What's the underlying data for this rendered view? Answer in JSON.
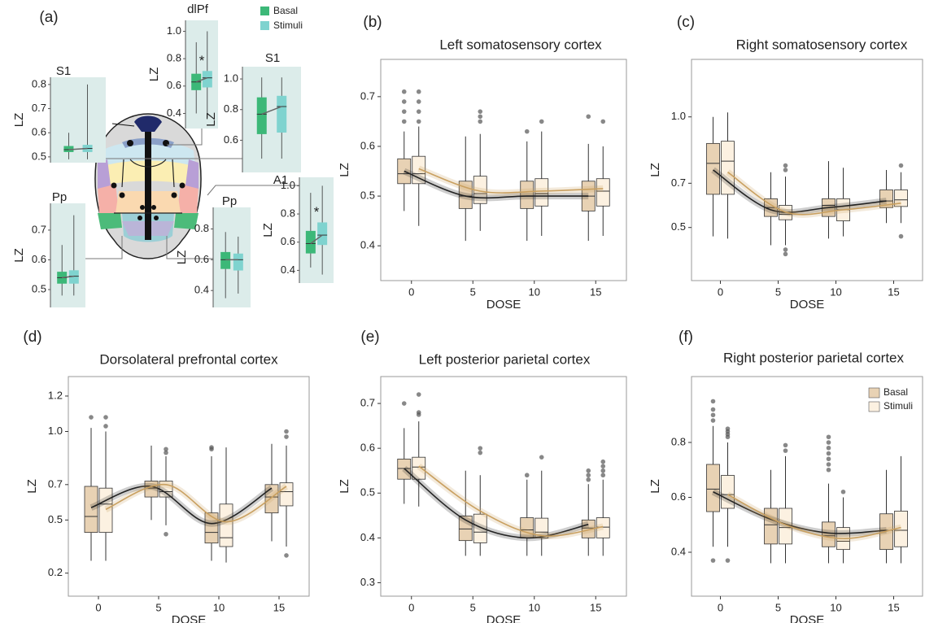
{
  "chart_data": [
    {
      "type": "insets",
      "label": "(a)",
      "series": [
        {
          "name": "Basal",
          "color": "#3cb878"
        },
        {
          "name": "Stimuli",
          "color": "#7fd3cf"
        }
      ],
      "insets": [
        {
          "title": "S1",
          "ylabel": "LZ",
          "ylim": [
            0.476,
            0.83
          ],
          "yticks": [
            0.5,
            0.6,
            0.7,
            0.8
          ],
          "boxes": [
            {
              "min": 0.49,
              "q1": 0.52,
              "median": 0.53,
              "q3": 0.545,
              "max": 0.6
            },
            {
              "min": 0.49,
              "q1": 0.52,
              "median": 0.535,
              "q3": 0.55,
              "max": 0.8
            }
          ]
        },
        {
          "title": "dlPf",
          "ylabel": "LZ",
          "annotation": "*",
          "ylim": [
            0.29,
            1.08
          ],
          "yticks": [
            0.4,
            0.6,
            0.8,
            {
              "value": 1,
              "label": "1.0"
            }
          ],
          "boxes": [
            {
              "min": 0.4,
              "q1": 0.57,
              "median": 0.63,
              "q3": 0.69,
              "max": 0.92
            },
            {
              "min": 0.37,
              "q1": 0.59,
              "median": 0.66,
              "q3": 0.71,
              "max": 1.0
            }
          ]
        },
        {
          "title": "S1",
          "ylabel": "LZ",
          "ylim": [
            0.39,
            1.08
          ],
          "yticks": [
            0.6,
            0.8,
            {
              "value": 1,
              "label": "1.0"
            }
          ],
          "boxes": [
            {
              "min": 0.48,
              "q1": 0.64,
              "median": 0.77,
              "q3": 0.88,
              "max": 1.01
            },
            {
              "min": 0.48,
              "q1": 0.65,
              "median": 0.82,
              "q3": 0.89,
              "max": 1.01
            }
          ]
        },
        {
          "title": "A1",
          "ylabel": "LZ",
          "annotation": "*",
          "ylim": [
            0.31,
            1.06
          ],
          "yticks": [
            0.4,
            0.6,
            0.8,
            {
              "value": 1,
              "label": "1.0"
            }
          ],
          "boxes": [
            {
              "min": 0.42,
              "q1": 0.52,
              "median": 0.59,
              "q3": 0.68,
              "max": 0.95
            },
            {
              "min": 0.37,
              "q1": 0.58,
              "median": 0.65,
              "q3": 0.74,
              "max": 1.0
            }
          ]
        },
        {
          "title": "Pp",
          "ylabel": "LZ",
          "ylim": [
            0.44,
            0.79
          ],
          "yticks": [
            0.5,
            0.6,
            0.7
          ],
          "boxes": [
            {
              "min": 0.48,
              "q1": 0.52,
              "median": 0.54,
              "q3": 0.56,
              "max": 0.65
            },
            {
              "min": 0.48,
              "q1": 0.52,
              "median": 0.545,
              "q3": 0.565,
              "max": 0.75
            }
          ]
        },
        {
          "title": "Pp",
          "ylabel": "LZ",
          "ylim": [
            0.29,
            0.94
          ],
          "yticks": [
            0.4,
            0.6,
            0.8
          ],
          "boxes": [
            {
              "min": 0.35,
              "q1": 0.54,
              "median": 0.6,
              "q3": 0.65,
              "max": 0.78
            },
            {
              "min": 0.38,
              "q1": 0.53,
              "median": 0.6,
              "q3": 0.64,
              "max": 0.75
            }
          ]
        }
      ]
    },
    {
      "type": "box",
      "label": "(b)",
      "title": "Left somatosensory cortex",
      "xlabel": "DOSE",
      "ylabel": "LZ",
      "categories": [
        "0",
        "5",
        "10",
        "15"
      ],
      "ylim": [
        0.33,
        0.775
      ],
      "yticks": [
        0.4,
        0.5,
        0.6,
        0.7
      ],
      "series": [
        {
          "color": "#e8d2b4",
          "fit_color": "#222222",
          "min": [
            0.47,
            0.41,
            0.41,
            0.41
          ],
          "q1": [
            0.525,
            0.475,
            0.475,
            0.47
          ],
          "median": [
            0.545,
            0.5,
            0.5,
            0.5
          ],
          "q3": [
            0.575,
            0.53,
            0.53,
            0.53
          ],
          "max": [
            0.63,
            0.62,
            0.61,
            0.605
          ],
          "outliers": [
            [
              0.65,
              0.67,
              0.69,
              0.71
            ],
            [],
            [
              0.63
            ],
            [
              0.66
            ]
          ],
          "fit": [
            0.55,
            0.5,
            0.5,
            0.5
          ]
        },
        {
          "color": "#fcf1e1",
          "fit_color": "#c9a060",
          "min": [
            0.44,
            0.43,
            0.42,
            0.42
          ],
          "q1": [
            0.525,
            0.485,
            0.48,
            0.48
          ],
          "median": [
            0.545,
            0.505,
            0.505,
            0.51
          ],
          "q3": [
            0.58,
            0.54,
            0.535,
            0.535
          ],
          "max": [
            0.64,
            0.625,
            0.63,
            0.6
          ],
          "outliers": [
            [
              0.65,
              0.67,
              0.69,
              0.71
            ],
            [
              0.65,
              0.66,
              0.67
            ],
            [
              0.65
            ],
            [
              0.65
            ]
          ],
          "fit": [
            0.555,
            0.51,
            0.51,
            0.515
          ]
        }
      ]
    },
    {
      "type": "box",
      "label": "(c)",
      "title": "Right somatosensory cortex",
      "xlabel": "DOSE",
      "ylabel": "LZ",
      "categories": [
        "0",
        "5",
        "10",
        "15"
      ],
      "ylim": [
        0.26,
        1.26
      ],
      "yticks": [
        0.5,
        0.7,
        {
          "value": 1,
          "label": "1.0"
        }
      ],
      "series": [
        {
          "color": "#e8d2b4",
          "fit_color": "#222222",
          "min": [
            0.46,
            0.42,
            0.45,
            0.52
          ],
          "q1": [
            0.65,
            0.55,
            0.55,
            0.59
          ],
          "median": [
            0.79,
            0.59,
            0.6,
            0.62
          ],
          "q3": [
            0.88,
            0.63,
            0.63,
            0.67
          ],
          "max": [
            1.0,
            0.75,
            0.8,
            0.76
          ],
          "outliers": [
            [],
            [],
            [],
            []
          ],
          "fit": [
            0.76,
            0.58,
            0.59,
            0.62
          ]
        },
        {
          "color": "#fcf1e1",
          "fit_color": "#c9a060",
          "min": [
            0.45,
            0.42,
            0.46,
            0.52
          ],
          "q1": [
            0.65,
            0.535,
            0.53,
            0.595
          ],
          "median": [
            0.8,
            0.56,
            0.58,
            0.625
          ],
          "q3": [
            0.89,
            0.6,
            0.63,
            0.67
          ],
          "max": [
            1.02,
            0.73,
            0.77,
            0.75
          ],
          "outliers": [
            [],
            [
              0.38,
              0.4,
              0.76,
              0.78
            ],
            [],
            [
              0.46,
              0.78
            ]
          ],
          "fit": [
            0.75,
            0.57,
            0.58,
            0.61
          ]
        }
      ]
    },
    {
      "type": "box",
      "label": "(d)",
      "title": "Dorsolateral prefrontal cortex",
      "xlabel": "DOSE",
      "ylabel": "LZ",
      "categories": [
        "0",
        "5",
        "10",
        "15"
      ],
      "ylim": [
        0.07,
        1.31
      ],
      "yticks": [
        0.2,
        0.5,
        0.7,
        {
          "value": 1,
          "label": "1.0"
        },
        1.2
      ],
      "series": [
        {
          "color": "#e8d2b4",
          "fit_color": "#222222",
          "min": [
            0.27,
            0.5,
            0.27,
            0.38
          ],
          "q1": [
            0.43,
            0.63,
            0.37,
            0.54
          ],
          "median": [
            0.52,
            0.68,
            0.43,
            0.63
          ],
          "q3": [
            0.69,
            0.72,
            0.54,
            0.7
          ],
          "max": [
            1.02,
            0.92,
            0.86,
            0.93
          ],
          "outliers": [
            [
              1.08
            ],
            [],
            [
              0.9,
              0.91
            ],
            []
          ],
          "fit": [
            0.57,
            0.69,
            0.48,
            0.68
          ]
        },
        {
          "color": "#fcf1e1",
          "fit_color": "#c9a060",
          "min": [
            0.27,
            0.47,
            0.26,
            0.35
          ],
          "q1": [
            0.43,
            0.63,
            0.35,
            0.58
          ],
          "median": [
            0.59,
            0.66,
            0.4,
            0.66
          ],
          "q3": [
            0.68,
            0.72,
            0.59,
            0.71
          ],
          "max": [
            1.0,
            0.86,
            0.91,
            0.92
          ],
          "outliers": [
            [
              1.03,
              1.08
            ],
            [
              0.88,
              0.9,
              0.42
            ],
            [],
            [
              0.97,
              1.0,
              0.3
            ]
          ],
          "fit": [
            0.56,
            0.7,
            0.49,
            0.69
          ]
        }
      ]
    },
    {
      "type": "box",
      "label": "(e)",
      "title": "Left posterior parietal cortex",
      "xlabel": "DOSE",
      "ylabel": "LZ",
      "categories": [
        "0",
        "5",
        "10",
        "15"
      ],
      "ylim": [
        0.27,
        0.76
      ],
      "yticks": [
        0.3,
        0.4,
        0.5,
        0.6,
        0.7
      ],
      "series": [
        {
          "color": "#e8d2b4",
          "fit_color": "#222222",
          "min": [
            0.476,
            0.36,
            0.36,
            0.36
          ],
          "q1": [
            0.531,
            0.394,
            0.4,
            0.4
          ],
          "median": [
            0.555,
            0.42,
            0.418,
            0.422
          ],
          "q3": [
            0.576,
            0.449,
            0.445,
            0.44
          ],
          "max": [
            0.645,
            0.55,
            0.53,
            0.52
          ],
          "outliers": [
            [
              0.7
            ],
            [],
            [
              0.54
            ],
            [
              0.53,
              0.54,
              0.55
            ]
          ],
          "fit": [
            0.555,
            0.44,
            0.4,
            0.43
          ]
        },
        {
          "color": "#fcf1e1",
          "fit_color": "#c9a060",
          "min": [
            0.47,
            0.36,
            0.36,
            0.36
          ],
          "q1": [
            0.531,
            0.389,
            0.4,
            0.4
          ],
          "median": [
            0.558,
            0.413,
            0.413,
            0.424
          ],
          "q3": [
            0.58,
            0.453,
            0.444,
            0.445
          ],
          "max": [
            0.66,
            0.54,
            0.55,
            0.53
          ],
          "outliers": [
            [
              0.675,
              0.68,
              0.72
            ],
            [
              0.59,
              0.6
            ],
            [
              0.58
            ],
            [
              0.54,
              0.55,
              0.56,
              0.57
            ]
          ],
          "fit": [
            0.56,
            0.46,
            0.405,
            0.425
          ]
        }
      ]
    },
    {
      "type": "box",
      "label": "(f)",
      "title": "Right posterior parietal cortex",
      "xlabel": "DOSE",
      "ylabel": "LZ",
      "categories": [
        "0",
        "5",
        "10",
        "15"
      ],
      "ylim": [
        0.24,
        1.04
      ],
      "yticks": [
        0.4,
        0.6,
        0.8
      ],
      "legend": "top-right",
      "series": [
        {
          "name": "Basal",
          "color": "#e8d2b4",
          "fit_color": "#222222",
          "min": [
            0.42,
            0.36,
            0.36,
            0.36
          ],
          "q1": [
            0.548,
            0.43,
            0.42,
            0.41
          ],
          "median": [
            0.63,
            0.5,
            0.46,
            0.48
          ],
          "q3": [
            0.72,
            0.56,
            0.51,
            0.54
          ],
          "max": [
            0.86,
            0.7,
            0.65,
            0.7
          ],
          "outliers": [
            [
              0.37,
              0.88,
              0.9,
              0.92,
              0.95
            ],
            [],
            [
              0.7,
              0.72,
              0.74,
              0.76,
              0.78,
              0.8,
              0.82
            ],
            []
          ],
          "fit": [
            0.62,
            0.52,
            0.47,
            0.48
          ]
        },
        {
          "name": "Stimuli",
          "color": "#fcf1e1",
          "fit_color": "#c9a060",
          "min": [
            0.42,
            0.36,
            0.36,
            0.36
          ],
          "q1": [
            0.56,
            0.43,
            0.41,
            0.42
          ],
          "median": [
            0.61,
            0.49,
            0.44,
            0.48
          ],
          "q3": [
            0.68,
            0.56,
            0.49,
            0.55
          ],
          "max": [
            0.8,
            0.75,
            0.6,
            0.75
          ],
          "outliers": [
            [
              0.37,
              0.82,
              0.83,
              0.84,
              0.85
            ],
            [
              0.77,
              0.79
            ],
            [
              0.62
            ],
            []
          ],
          "fit": [
            0.61,
            0.5,
            0.45,
            0.49
          ]
        }
      ]
    }
  ]
}
